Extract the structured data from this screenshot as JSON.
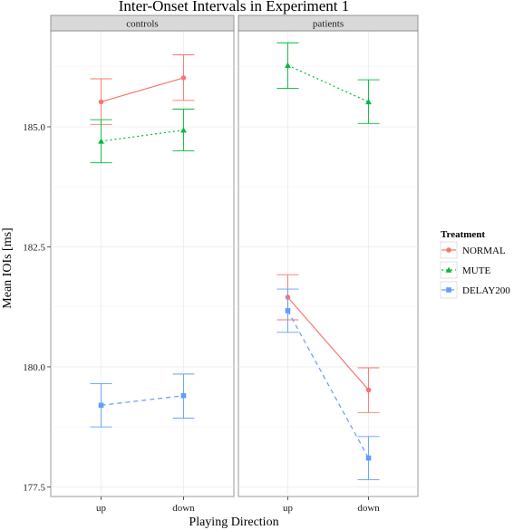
{
  "chart_data": {
    "type": "line",
    "title": "Inter-Onset Intervals in Experiment 1",
    "xlabel": "Playing Direction",
    "ylabel": "Mean IOIs [ms]",
    "categories": [
      "up",
      "down"
    ],
    "panels": [
      {
        "name": "controls",
        "series": [
          {
            "name": "NORMAL",
            "values": [
              185.52,
              186.02
            ],
            "lower": [
              185.05,
              185.55
            ],
            "upper": [
              186.0,
              186.5
            ]
          },
          {
            "name": "MUTE",
            "values": [
              184.7,
              184.93
            ],
            "lower": [
              184.25,
              184.5
            ],
            "upper": [
              185.15,
              185.37
            ]
          },
          {
            "name": "DELAY200",
            "values": [
              179.2,
              179.4
            ],
            "lower": [
              178.75,
              178.93
            ],
            "upper": [
              179.65,
              179.85
            ]
          }
        ]
      },
      {
        "name": "patients",
        "series": [
          {
            "name": "NORMAL",
            "values": [
              181.45,
              179.52
            ],
            "lower": [
              180.98,
              179.05
            ],
            "upper": [
              181.92,
              179.98
            ]
          },
          {
            "name": "MUTE",
            "values": [
              186.28,
              185.52
            ],
            "lower": [
              185.8,
              185.07
            ],
            "upper": [
              186.75,
              185.98
            ]
          },
          {
            "name": "DELAY200",
            "values": [
              181.17,
              178.1
            ],
            "lower": [
              180.72,
              177.65
            ],
            "upper": [
              181.62,
              178.55
            ]
          }
        ]
      }
    ],
    "yticks": [
      177.5,
      180.0,
      182.5,
      185.0
    ],
    "ylim": [
      177.3,
      187.0
    ],
    "legend": {
      "title": "Treatment",
      "placement": "right",
      "entries": [
        "NORMAL",
        "MUTE",
        "DELAY200"
      ]
    },
    "colors": {
      "NORMAL": "#F8766D",
      "MUTE": "#00BA38",
      "DELAY200": "#619CFF"
    },
    "linetypes": {
      "NORMAL": "solid",
      "MUTE": "dotted",
      "DELAY200": "dashed"
    },
    "shapes": {
      "NORMAL": "circle",
      "MUTE": "triangle",
      "DELAY200": "square"
    },
    "grid": true,
    "panel_background": "#ffffff",
    "strip_background": "#d9d9d9"
  }
}
